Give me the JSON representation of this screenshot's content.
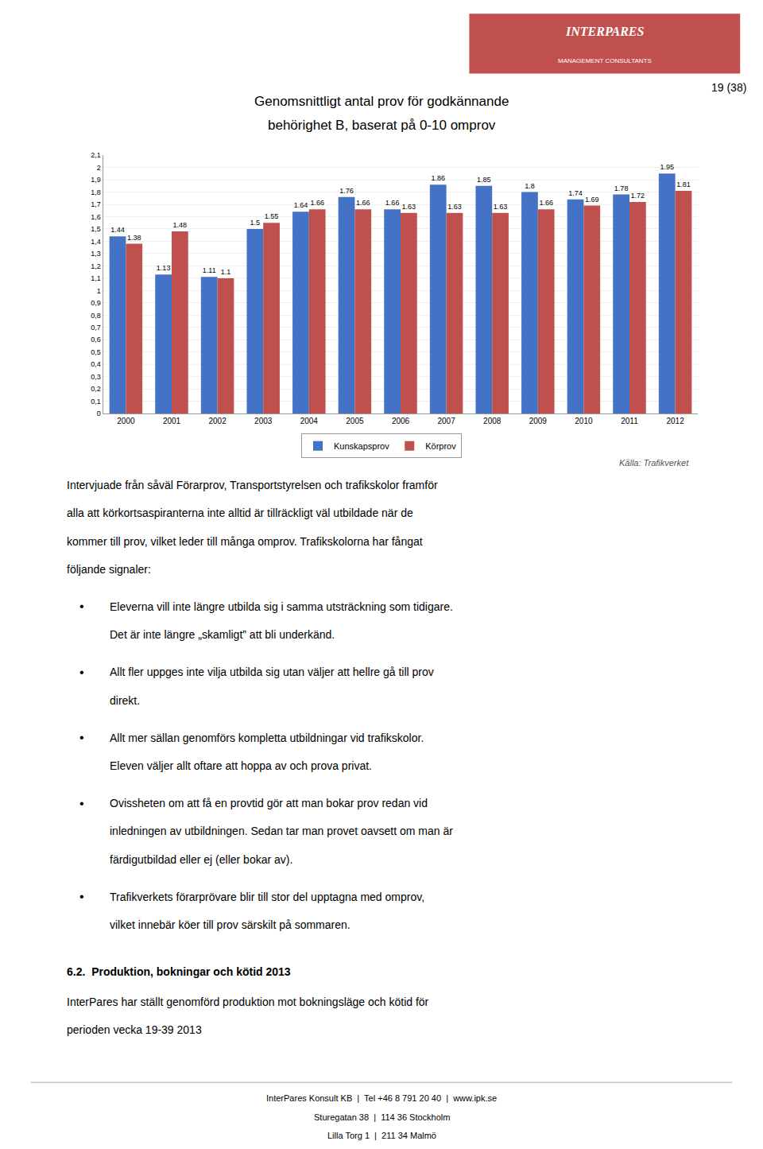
{
  "chart_data": {
    "type": "bar",
    "title": "Genomsnittligt antal prov för godkännande",
    "subtitle": "behörighet B, baserat på 0-10 omprov",
    "categories": [
      "2000",
      "2001",
      "2002",
      "2003",
      "2004",
      "2005",
      "2006",
      "2007",
      "2008",
      "2009",
      "2010",
      "2011",
      "2012"
    ],
    "series": [
      {
        "name": "Kunskapsprov",
        "color": "#4472C4",
        "values": [
          1.44,
          1.13,
          1.11,
          1.5,
          1.64,
          1.76,
          1.66,
          1.86,
          1.85,
          1.8,
          1.74,
          1.78,
          1.95
        ]
      },
      {
        "name": "Körprov",
        "color": "#C0504D",
        "values": [
          1.38,
          1.48,
          1.1,
          1.55,
          1.66,
          1.66,
          1.63,
          1.63,
          1.63,
          1.66,
          1.69,
          1.72,
          1.81
        ]
      }
    ],
    "ylim": [
      0,
      2.1
    ],
    "yticks": [
      0,
      {
        "value": 0.1,
        "label": "0,1"
      },
      {
        "value": 0.2,
        "label": "0,2"
      },
      {
        "value": 0.3,
        "label": "0,3"
      },
      {
        "value": 0.4,
        "label": "0,4"
      },
      {
        "value": 0.5,
        "label": "0,5"
      },
      {
        "value": 0.6,
        "label": "0,6"
      },
      {
        "value": 0.7,
        "label": "0,7"
      },
      {
        "value": 0.8,
        "label": "0,8"
      },
      {
        "value": 0.9,
        "label": "0,9"
      },
      1,
      {
        "value": 1.1,
        "label": "1,1"
      },
      {
        "value": 1.2,
        "label": "1,2"
      },
      {
        "value": 1.3,
        "label": "1,3"
      },
      {
        "value": 1.4,
        "label": "1,4"
      },
      {
        "value": 1.5,
        "label": "1,5"
      },
      {
        "value": 1.6,
        "label": "1,6"
      },
      {
        "value": 1.7,
        "label": "1,7"
      },
      {
        "value": 1.8,
        "label": "1,8"
      },
      {
        "value": 1.9,
        "label": "1,9"
      },
      2,
      {
        "value": 2.1,
        "label": "2,1"
      }
    ],
    "grid": true,
    "legend": "bottom",
    "data_labels": true,
    "annotations": [
      "INTERPARES",
      "MANAGEMENT CONSULTANTS",
      "19 (38)",
      "Källa: Trafikverket",
      [
        "Intervjuade från såväl Förarprov, Transportstyrelsen och trafikskolor framför",
        "alla att körkortsaspiranterna inte alltid är tillräckligt väl utbildade när de",
        "kommer till prov, vilket leder till många omprov. Trafikskolorna har fångat",
        "följande signaler:"
      ],
      "•",
      [
        [
          "Eleverna vill inte längre utbilda sig i samma utsträckning som tidigare.",
          "Det är inte längre „skamligt” att bli underkänd."
        ],
        [
          "Allt fler uppges inte vilja utbilda sig utan väljer att hellre gå till prov",
          "direkt."
        ],
        [
          "Allt mer sällan genomförs kompletta utbildningar vid trafikskolor.",
          "Eleven väljer allt oftare att hoppa av och prova privat."
        ],
        [
          "Ovissheten om att få en provtid gör att man bokar prov redan vid",
          "inledningen av utbildningen. Sedan tar man provet oavsett om man är",
          "färdigutbildad eller ej (eller bokar av)."
        ],
        [
          "Trafikverkets förarprövare blir till stor del upptagna med omprov,",
          "vilket innebär köer till prov särskilt på sommaren."
        ]
      ],
      "6.2.  Produktion, bokningar och kötid 2013",
      [
        "InterPares har ställt genomförd produktion mot bokningsläge och kötid för",
        "perioden vecka 19-39 2013"
      ],
      [
        "InterPares Konsult KB  |  Tel +46 8 791 20 40  |  www.ipk.se",
        "Sturegatan 38  |  114 36 Stockholm",
        "Lilla Torg 1  |  211 34 Malmö"
      ]
    ]
  }
}
